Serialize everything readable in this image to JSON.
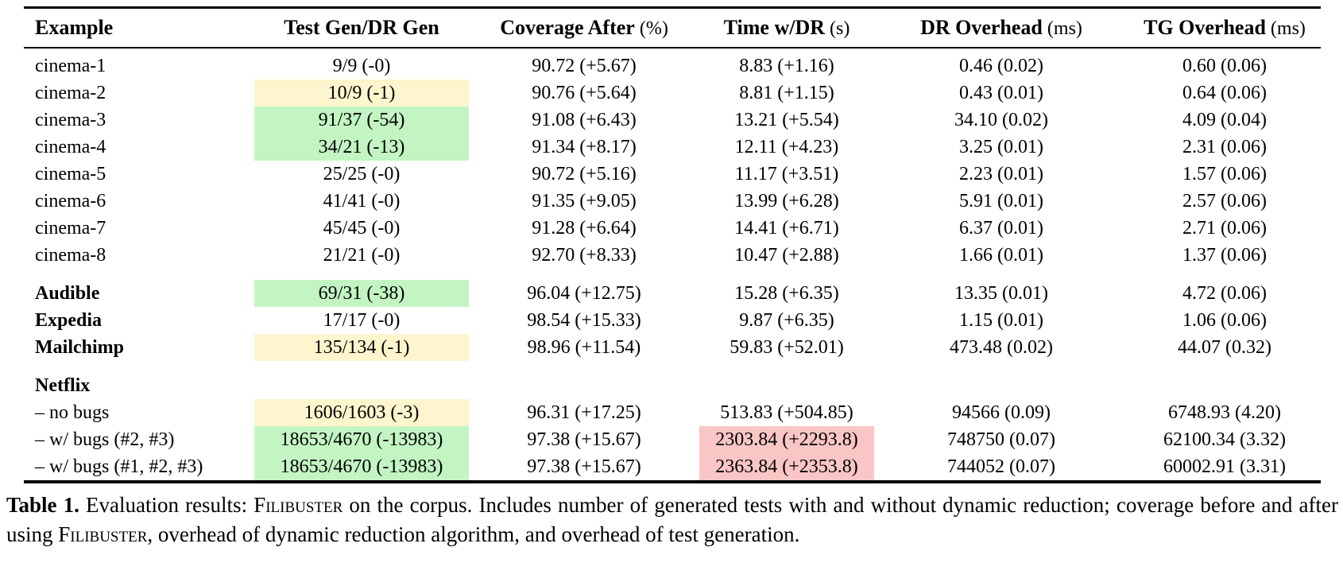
{
  "colors": {
    "yellow": "#fdf5cd",
    "green": "#c3f5c3",
    "pink": "#f9c5c5"
  },
  "table": {
    "columns": [
      {
        "key": "example",
        "label": "Example",
        "unit": ""
      },
      {
        "key": "testgen",
        "label": "Test Gen/DR Gen",
        "unit": ""
      },
      {
        "key": "coverage",
        "label": "Coverage After",
        "unit": "(%)"
      },
      {
        "key": "time",
        "label": "Time w/DR",
        "unit": "(s)"
      },
      {
        "key": "droverhead",
        "label": "DR Overhead",
        "unit": "(ms)"
      },
      {
        "key": "tgoverhead",
        "label": "TG Overhead",
        "unit": "(ms)"
      }
    ],
    "rows": [
      {
        "name": "cinema-1",
        "bold": false,
        "group_start": false,
        "cells": [
          {
            "t": "9/9 (-0)"
          },
          {
            "t": "90.72 (+5.67)"
          },
          {
            "t": "8.83 (+1.16)"
          },
          {
            "t": "0.46 (0.02)"
          },
          {
            "t": "0.60 (0.06)"
          }
        ]
      },
      {
        "name": "cinema-2",
        "bold": false,
        "group_start": false,
        "cells": [
          {
            "t": "10/9 (-1)",
            "hl": "yellow"
          },
          {
            "t": "90.76 (+5.64)"
          },
          {
            "t": "8.81 (+1.15)"
          },
          {
            "t": "0.43 (0.01)"
          },
          {
            "t": "0.64 (0.06)"
          }
        ]
      },
      {
        "name": "cinema-3",
        "bold": false,
        "group_start": false,
        "cells": [
          {
            "t": "91/37 (-54)",
            "hl": "green"
          },
          {
            "t": "91.08 (+6.43)"
          },
          {
            "t": "13.21 (+5.54)"
          },
          {
            "t": "34.10 (0.02)"
          },
          {
            "t": "4.09 (0.04)"
          }
        ]
      },
      {
        "name": "cinema-4",
        "bold": false,
        "group_start": false,
        "cells": [
          {
            "t": "34/21 (-13)",
            "hl": "green"
          },
          {
            "t": "91.34 (+8.17)"
          },
          {
            "t": "12.11 (+4.23)"
          },
          {
            "t": "3.25 (0.01)"
          },
          {
            "t": "2.31 (0.06)"
          }
        ]
      },
      {
        "name": "cinema-5",
        "bold": false,
        "group_start": false,
        "cells": [
          {
            "t": "25/25 (-0)"
          },
          {
            "t": "90.72 (+5.16)"
          },
          {
            "t": "11.17 (+3.51)"
          },
          {
            "t": "2.23 (0.01)"
          },
          {
            "t": "1.57 (0.06)"
          }
        ]
      },
      {
        "name": "cinema-6",
        "bold": false,
        "group_start": false,
        "cells": [
          {
            "t": "41/41 (-0)"
          },
          {
            "t": "91.35 (+9.05)"
          },
          {
            "t": "13.99 (+6.28)"
          },
          {
            "t": "5.91 (0.01)"
          },
          {
            "t": "2.57 (0.06)"
          }
        ]
      },
      {
        "name": "cinema-7",
        "bold": false,
        "group_start": false,
        "cells": [
          {
            "t": "45/45 (-0)"
          },
          {
            "t": "91.28 (+6.64)"
          },
          {
            "t": "14.41 (+6.71)"
          },
          {
            "t": "6.37 (0.01)"
          },
          {
            "t": "2.71 (0.06)"
          }
        ]
      },
      {
        "name": "cinema-8",
        "bold": false,
        "group_start": false,
        "cells": [
          {
            "t": "21/21 (-0)"
          },
          {
            "t": "92.70 (+8.33)"
          },
          {
            "t": "10.47 (+2.88)"
          },
          {
            "t": "1.66 (0.01)"
          },
          {
            "t": "1.37 (0.06)"
          }
        ]
      },
      {
        "name": "Audible",
        "bold": true,
        "group_start": true,
        "cells": [
          {
            "t": "69/31 (-38)",
            "hl": "green"
          },
          {
            "t": "96.04 (+12.75)"
          },
          {
            "t": "15.28 (+6.35)"
          },
          {
            "t": "13.35 (0.01)"
          },
          {
            "t": "4.72 (0.06)"
          }
        ]
      },
      {
        "name": "Expedia",
        "bold": true,
        "group_start": false,
        "cells": [
          {
            "t": "17/17 (-0)"
          },
          {
            "t": "98.54 (+15.33)"
          },
          {
            "t": "9.87 (+6.35)"
          },
          {
            "t": "1.15 (0.01)"
          },
          {
            "t": "1.06 (0.06)"
          }
        ]
      },
      {
        "name": "Mailchimp",
        "bold": true,
        "group_start": false,
        "cells": [
          {
            "t": "135/134 (-1)",
            "hl": "yellow"
          },
          {
            "t": "98.96 (+11.54)"
          },
          {
            "t": "59.83 (+52.01)"
          },
          {
            "t": "473.48 (0.02)"
          },
          {
            "t": "44.07 (0.32)"
          }
        ]
      },
      {
        "name": "Netflix",
        "bold": true,
        "group_start": true,
        "cells": [
          {
            "t": ""
          },
          {
            "t": ""
          },
          {
            "t": ""
          },
          {
            "t": ""
          },
          {
            "t": ""
          }
        ]
      },
      {
        "name": "– no bugs",
        "bold": false,
        "group_start": false,
        "cells": [
          {
            "t": "1606/1603 (-3)",
            "hl": "yellow"
          },
          {
            "t": "96.31 (+17.25)"
          },
          {
            "t": "513.83 (+504.85)"
          },
          {
            "t": "94566 (0.09)"
          },
          {
            "t": "6748.93 (4.20)"
          }
        ]
      },
      {
        "name": "– w/ bugs (#2, #3)",
        "bold": false,
        "group_start": false,
        "cells": [
          {
            "t": "18653/4670 (-13983)",
            "hl": "green"
          },
          {
            "t": "97.38 (+15.67)"
          },
          {
            "t": "2303.84 (+2293.8)",
            "hl": "pink"
          },
          {
            "t": "748750 (0.07)"
          },
          {
            "t": "62100.34 (3.32)"
          }
        ]
      },
      {
        "name": "– w/ bugs (#1, #2, #3)",
        "bold": false,
        "group_start": false,
        "cells": [
          {
            "t": "18653/4670 (-13983)",
            "hl": "green"
          },
          {
            "t": "97.38 (+15.67)"
          },
          {
            "t": "2363.84 (+2353.8)",
            "hl": "pink"
          },
          {
            "t": "744052 (0.07)"
          },
          {
            "t": "60002.91 (3.31)"
          }
        ]
      }
    ]
  },
  "caption": {
    "segments": [
      {
        "text": "Table 1.",
        "style": "bold"
      },
      {
        "text": " Evaluation results: ",
        "style": "normal"
      },
      {
        "text": "Filibuster",
        "style": "smallcaps"
      },
      {
        "text": " on the corpus. Includes number of generated tests with and without dynamic reduction; coverage before and after using ",
        "style": "normal"
      },
      {
        "text": "Filibuster",
        "style": "smallcaps"
      },
      {
        "text": ", overhead of dynamic reduction algorithm, and overhead of test generation.",
        "style": "normal"
      }
    ]
  }
}
